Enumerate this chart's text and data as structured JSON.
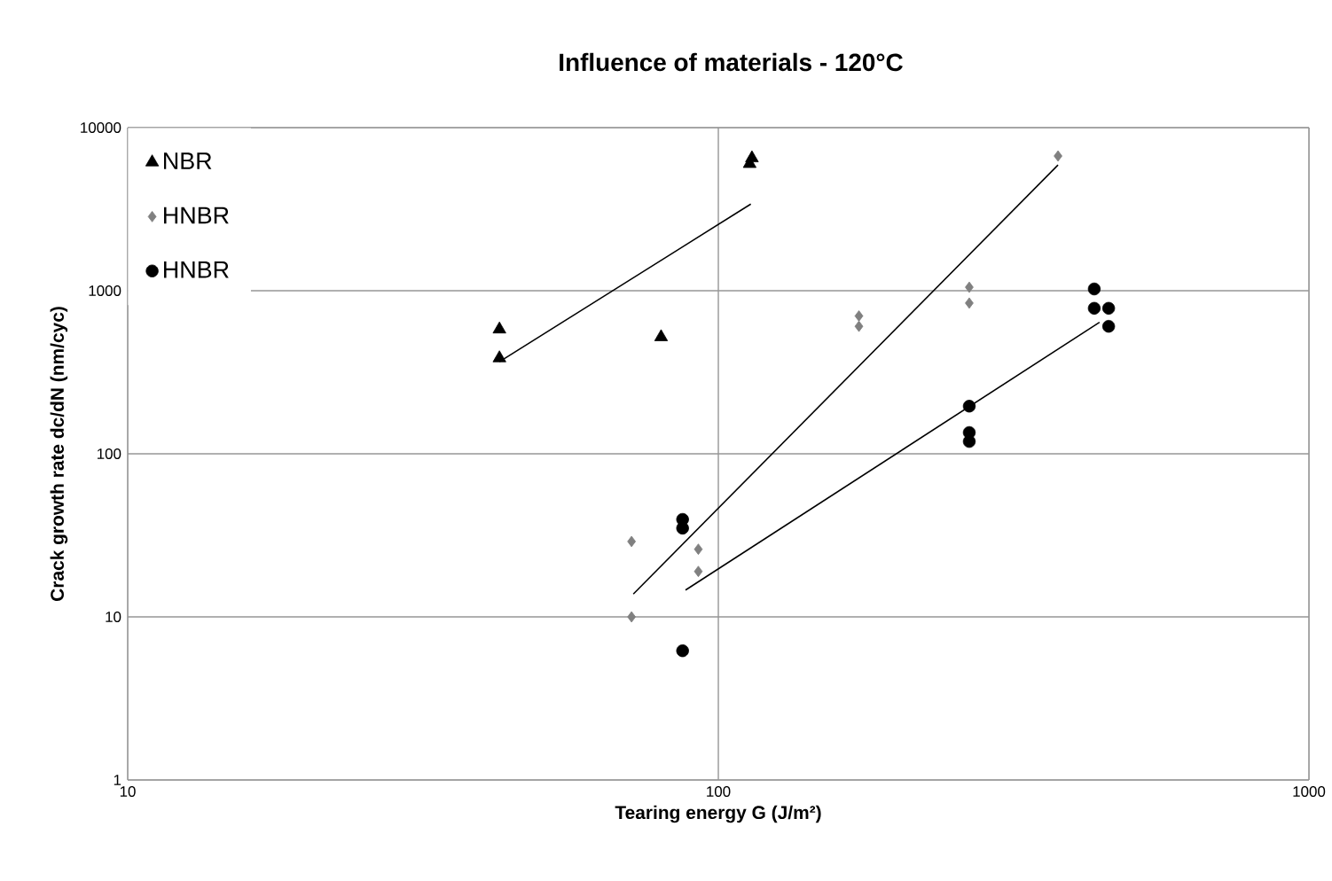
{
  "chart_data": {
    "type": "scatter",
    "title": "Influence of materials - 120°C",
    "xlabel": "Tearing energy G (J/m²)",
    "ylabel": "Crack growth rate dc/dN  (nm/cyc)",
    "log": "xy",
    "grid": true,
    "legend": "top left",
    "xlim": [
      10,
      1000
    ],
    "xticks": [
      10,
      100,
      1000
    ],
    "ylim": [
      1,
      10000
    ],
    "yticks": [
      1,
      10,
      100,
      1000,
      10000
    ],
    "series": [
      {
        "name": "NBR",
        "color": "#000000",
        "marker": "triangle",
        "x": [
          42.6,
          42.6,
          80,
          113,
          114
        ],
        "values": [
          580,
          386,
          520,
          6000,
          6500
        ]
      },
      {
        "name": "HNBR",
        "color": "#808080",
        "marker": "diamond",
        "x": [
          71.3,
          71.3,
          92.5,
          92.5,
          173,
          173,
          266,
          266,
          376
        ],
        "values": [
          29,
          10,
          26,
          19,
          700,
          605,
          1050,
          840,
          6700
        ]
      },
      {
        "name": "HNBR",
        "color": "#000000",
        "marker": "circle",
        "x": [
          87,
          87,
          87,
          266,
          266,
          266,
          433,
          433,
          458,
          458
        ],
        "values": [
          39.6,
          35,
          6.2,
          196,
          135,
          119,
          1025,
          780,
          780,
          605
        ]
      },
      {
        "type": "line",
        "color": "#000000",
        "marker": "none",
        "line_style": "solid",
        "x": [
          42.6,
          113.5
        ],
        "values": [
          367,
          3400
        ]
      },
      {
        "type": "line",
        "color": "#000000",
        "marker": "none",
        "line_style": "solid",
        "x": [
          71.8,
          376
        ],
        "values": [
          13.8,
          5900
        ]
      },
      {
        "type": "line",
        "color": "#000000",
        "marker": "none",
        "line_style": "solid",
        "x": [
          88,
          442
        ],
        "values": [
          14.6,
          640
        ]
      }
    ]
  }
}
